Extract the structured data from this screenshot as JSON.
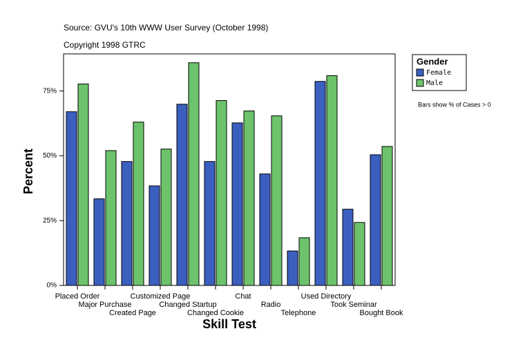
{
  "chart_data": {
    "type": "bar",
    "subtitle": "Source: GVU's 10th WWW User Survey (October 1998)",
    "copyright": "Copyright 1998 GTRC",
    "y_label": "Percent",
    "x_label": "Skill Test",
    "legend_title": "Gender",
    "note": "Bars show % of Cases > 0",
    "categories": [
      "Placed Order",
      "Major Purchase",
      "Created Page",
      "Customized Page",
      "Changed Startup",
      "Changed Cookie",
      "Chat",
      "Radio",
      "Telephone",
      "Used Directory",
      "Took Seminar",
      "Bought Book"
    ],
    "series": [
      {
        "name": "Female",
        "color": "#3a5fbf",
        "values": [
          67,
          33.4,
          47.8,
          38.4,
          69.9,
          47.8,
          62.7,
          43,
          13.3,
          78.7,
          29.4,
          50.4
        ]
      },
      {
        "name": "Male",
        "color": "#6cc36c",
        "values": [
          77.7,
          52,
          63,
          52.6,
          85.9,
          71.3,
          67.3,
          65.4,
          18.4,
          80.9,
          24.3,
          53.6
        ]
      }
    ],
    "ylim": [
      0,
      89.3
    ],
    "yticks": [
      {
        "value": 0,
        "label": "0%"
      },
      {
        "value": 25,
        "label": "25%"
      },
      {
        "value": 50,
        "label": "50%"
      },
      {
        "value": 75,
        "label": "75%"
      }
    ],
    "legend": "top-right"
  }
}
